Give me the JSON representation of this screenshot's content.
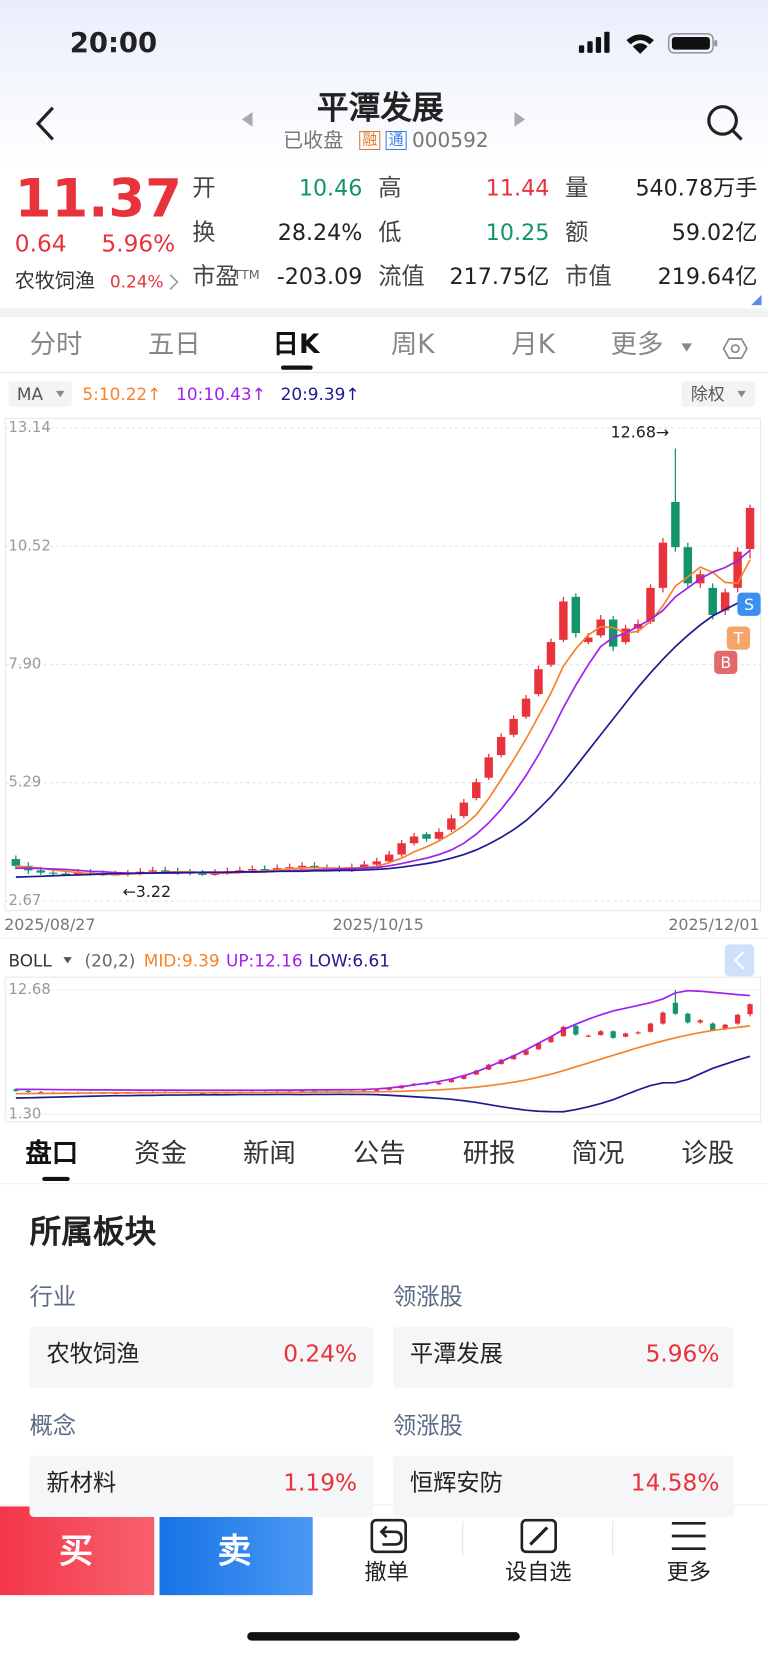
{
  "status_bar": {
    "time": "20:00"
  },
  "header": {
    "title": "平潭发展",
    "status": "已收盘",
    "tag_margin": "融",
    "tag_connect": "通",
    "code": "000592"
  },
  "quote": {
    "price": "11.37",
    "change": "0.64",
    "change_pct": "5.96%",
    "sector": "农牧饲渔",
    "sector_pct": "0.24%",
    "pe_suffix": "TTM",
    "fields": [
      [
        "开",
        "10.46"
      ],
      [
        "高",
        "11.44"
      ],
      [
        "量",
        "540.78万手"
      ],
      [
        "换",
        "28.24%"
      ],
      [
        "低",
        "10.25"
      ],
      [
        "额",
        "59.02亿"
      ],
      [
        "市盈",
        "-203.09"
      ],
      [
        "流值",
        "217.75亿"
      ],
      [
        "市值",
        "219.64亿"
      ]
    ]
  },
  "period_tabs": [
    "分时",
    "五日",
    "日K",
    "周K",
    "月K",
    "更多"
  ],
  "chart_data": [
    {
      "type": "candlestick",
      "indicator": "MA",
      "adjust": "除权",
      "ylim": [
        2.67,
        13.14
      ],
      "yticks": [
        13.14,
        10.52,
        {
          "value": 7.9,
          "label": "7.90"
        },
        5.29,
        2.67
      ],
      "x_labels": [
        "2025/08/27",
        "2025/10/15",
        "2025/12/01"
      ],
      "up_color": "#e8323c",
      "down_color": "#13946b",
      "open": [
        3.6,
        3.45,
        3.35,
        3.3,
        3.28,
        3.25,
        3.3,
        3.27,
        3.24,
        3.26,
        3.28,
        3.32,
        3.35,
        3.33,
        3.3,
        3.28,
        3.25,
        3.3,
        3.33,
        3.35,
        3.38,
        3.36,
        3.4,
        3.42,
        3.45,
        3.4,
        3.38,
        3.36,
        3.42,
        3.48,
        3.55,
        3.7,
        3.95,
        4.15,
        4.05,
        4.25,
        4.55,
        4.95,
        5.4,
        5.9,
        6.35,
        6.75,
        7.25,
        7.9,
        8.45,
        9.4,
        8.4,
        8.55,
        8.9,
        8.4,
        8.7,
        8.85,
        9.6,
        11.5,
        10.5,
        9.7,
        9.6,
        9.1,
        9.6,
        10.46
      ],
      "high": [
        3.68,
        3.53,
        3.43,
        3.38,
        3.36,
        3.38,
        3.38,
        3.35,
        3.34,
        3.36,
        3.4,
        3.43,
        3.43,
        3.41,
        3.38,
        3.36,
        3.38,
        3.41,
        3.43,
        3.46,
        3.46,
        3.48,
        3.5,
        3.53,
        3.53,
        3.48,
        3.46,
        3.5,
        3.56,
        3.63,
        3.78,
        4.02,
        4.18,
        4.2,
        4.28,
        4.58,
        4.93,
        5.38,
        5.93,
        6.38,
        6.78,
        7.23,
        7.88,
        8.48,
        9.4,
        9.48,
        8.6,
        9.0,
        8.98,
        8.78,
        8.9,
        9.68,
        10.7,
        12.68,
        10.6,
        10.0,
        9.7,
        9.58,
        10.5,
        11.44
      ],
      "low": [
        3.37,
        3.27,
        3.25,
        3.24,
        3.23,
        3.23,
        3.24,
        3.23,
        3.23,
        3.22,
        3.24,
        3.27,
        3.27,
        3.25,
        3.24,
        3.23,
        3.23,
        3.25,
        3.28,
        3.3,
        3.3,
        3.31,
        3.34,
        3.37,
        3.35,
        3.33,
        3.31,
        3.31,
        3.37,
        3.43,
        3.5,
        3.65,
        3.9,
        3.98,
        4.0,
        4.2,
        4.5,
        4.9,
        5.35,
        5.85,
        6.3,
        6.7,
        7.2,
        7.85,
        8.4,
        8.5,
        8.35,
        8.5,
        8.2,
        8.35,
        8.6,
        8.8,
        9.5,
        10.4,
        9.6,
        9.6,
        8.9,
        9.0,
        9.5,
        10.25
      ],
      "close": [
        3.45,
        3.35,
        3.3,
        3.28,
        3.25,
        3.3,
        3.27,
        3.24,
        3.26,
        3.28,
        3.32,
        3.35,
        3.33,
        3.3,
        3.28,
        3.25,
        3.3,
        3.33,
        3.35,
        3.38,
        3.36,
        3.4,
        3.42,
        3.45,
        3.4,
        3.38,
        3.36,
        3.42,
        3.48,
        3.55,
        3.7,
        3.95,
        4.1,
        4.05,
        4.2,
        4.5,
        4.85,
        5.3,
        5.85,
        6.3,
        6.7,
        7.15,
        7.8,
        8.4,
        9.3,
        8.6,
        8.5,
        8.9,
        8.3,
        8.7,
        8.8,
        9.6,
        10.6,
        10.5,
        9.7,
        9.9,
        9.0,
        9.5,
        10.4,
        11.37
      ],
      "series": [
        {
          "name": "5:10.22↑",
          "color": "#f5832a",
          "values": [
            3.45,
            3.42,
            3.4,
            3.36,
            3.33,
            3.3,
            3.28,
            3.27,
            3.26,
            3.27,
            3.28,
            3.29,
            3.31,
            3.32,
            3.32,
            3.3,
            3.29,
            3.29,
            3.3,
            3.32,
            3.34,
            3.36,
            3.38,
            3.4,
            3.41,
            3.4,
            3.4,
            3.4,
            3.41,
            3.44,
            3.52,
            3.62,
            3.76,
            3.87,
            4.0,
            4.16,
            4.34,
            4.58,
            4.94,
            5.36,
            5.8,
            6.26,
            6.76,
            7.27,
            7.87,
            8.25,
            8.56,
            8.74,
            8.72,
            8.6,
            8.64,
            8.86,
            9.2,
            9.64,
            9.84,
            10.06,
            9.94,
            9.72,
            9.7,
            10.22
          ]
        },
        {
          "name": "10:10.43↑",
          "color": "#a020f0",
          "values": [
            3.4,
            3.4,
            3.39,
            3.38,
            3.37,
            3.35,
            3.33,
            3.32,
            3.3,
            3.29,
            3.29,
            3.29,
            3.29,
            3.29,
            3.3,
            3.3,
            3.3,
            3.3,
            3.31,
            3.31,
            3.32,
            3.33,
            3.34,
            3.35,
            3.36,
            3.37,
            3.38,
            3.39,
            3.4,
            3.41,
            3.45,
            3.5,
            3.56,
            3.62,
            3.7,
            3.8,
            3.95,
            4.15,
            4.4,
            4.7,
            5.05,
            5.45,
            5.9,
            6.4,
            6.95,
            7.45,
            7.9,
            8.3,
            8.5,
            8.6,
            8.75,
            8.9,
            9.1,
            9.4,
            9.6,
            9.8,
            9.95,
            10.05,
            10.2,
            10.43
          ]
        },
        {
          "name": "20:9.39↑",
          "color": "#1b1b8f",
          "values": [
            3.2,
            3.21,
            3.22,
            3.23,
            3.24,
            3.25,
            3.26,
            3.27,
            3.28,
            3.28,
            3.29,
            3.29,
            3.3,
            3.3,
            3.3,
            3.31,
            3.31,
            3.31,
            3.32,
            3.32,
            3.32,
            3.33,
            3.33,
            3.33,
            3.34,
            3.34,
            3.35,
            3.35,
            3.36,
            3.37,
            3.39,
            3.42,
            3.46,
            3.5,
            3.55,
            3.62,
            3.7,
            3.8,
            3.93,
            4.08,
            4.25,
            4.45,
            4.7,
            4.98,
            5.3,
            5.65,
            6.0,
            6.35,
            6.7,
            7.05,
            7.4,
            7.72,
            8.02,
            8.3,
            8.55,
            8.78,
            8.98,
            9.12,
            9.26,
            9.39
          ]
        }
      ],
      "annotations": [
        "12.68→",
        "←3.22"
      ],
      "trade_markers": [
        "B",
        "T",
        "S"
      ]
    },
    {
      "type": "boll",
      "indicator": "BOLL",
      "params": "(20,2)",
      "ylim": [
        1.3,
        12.68
      ],
      "yticks": [
        12.68,
        {
          "value": 1.3,
          "label": "1.30"
        }
      ],
      "series": [
        {
          "name": "MID:9.39",
          "color": "#f5832a",
          "values": [
            3.2,
            3.21,
            3.22,
            3.23,
            3.24,
            3.25,
            3.26,
            3.27,
            3.28,
            3.28,
            3.29,
            3.29,
            3.3,
            3.3,
            3.3,
            3.31,
            3.31,
            3.31,
            3.32,
            3.32,
            3.32,
            3.33,
            3.33,
            3.33,
            3.34,
            3.34,
            3.35,
            3.35,
            3.36,
            3.37,
            3.39,
            3.42,
            3.46,
            3.5,
            3.55,
            3.62,
            3.7,
            3.8,
            3.93,
            4.08,
            4.25,
            4.45,
            4.7,
            4.98,
            5.3,
            5.65,
            6.0,
            6.35,
            6.7,
            7.05,
            7.4,
            7.72,
            8.02,
            8.3,
            8.55,
            8.78,
            8.98,
            9.12,
            9.26,
            9.39
          ]
        },
        {
          "name": "UP:12.16",
          "color": "#a020f0",
          "values": [
            3.6,
            3.6,
            3.59,
            3.58,
            3.57,
            3.56,
            3.55,
            3.55,
            3.54,
            3.54,
            3.53,
            3.53,
            3.53,
            3.53,
            3.52,
            3.52,
            3.52,
            3.52,
            3.52,
            3.52,
            3.52,
            3.53,
            3.53,
            3.54,
            3.55,
            3.55,
            3.56,
            3.57,
            3.59,
            3.63,
            3.72,
            3.85,
            4.0,
            4.15,
            4.32,
            4.55,
            4.85,
            5.2,
            5.65,
            6.15,
            6.65,
            7.2,
            7.8,
            8.4,
            9.05,
            9.55,
            10.0,
            10.4,
            10.75,
            11.0,
            11.25,
            11.5,
            11.85,
            12.4,
            12.6,
            12.55,
            12.45,
            12.35,
            12.25,
            12.16
          ]
        },
        {
          "name": "LOW:6.61",
          "color": "#1b1b8f",
          "values": [
            2.8,
            2.82,
            2.85,
            2.88,
            2.91,
            2.94,
            2.97,
            3.0,
            3.02,
            3.02,
            3.05,
            3.05,
            3.07,
            3.07,
            3.08,
            3.1,
            3.1,
            3.1,
            3.12,
            3.12,
            3.12,
            3.13,
            3.13,
            3.12,
            3.13,
            3.13,
            3.14,
            3.13,
            3.13,
            3.11,
            3.06,
            2.99,
            2.92,
            2.85,
            2.78,
            2.69,
            2.55,
            2.4,
            2.21,
            2.01,
            1.85,
            1.7,
            1.6,
            1.56,
            1.55,
            1.75,
            2.0,
            2.3,
            2.65,
            3.1,
            3.55,
            3.94,
            4.19,
            4.2,
            4.5,
            5.01,
            5.51,
            5.89,
            6.27,
            6.61
          ]
        }
      ]
    }
  ],
  "info_tabs": [
    "盘口",
    "资金",
    "新闻",
    "公告",
    "研报",
    "简况",
    "诊股"
  ],
  "sector_panel": {
    "title": "所属板块",
    "groups": [
      {
        "label": "行业",
        "name": "农牧饲渔",
        "pct": "0.24%",
        "leader_label": "领涨股",
        "leader": "平潭发展",
        "leader_pct": "5.96%"
      },
      {
        "label": "概念",
        "name": "新材料",
        "pct": "1.19%",
        "leader_label": "领涨股",
        "leader": "恒辉安防",
        "leader_pct": "14.58%"
      }
    ]
  },
  "action_bar": {
    "buy": "买",
    "sell": "卖",
    "cancel": "撤单",
    "watchlist": "设自选",
    "more": "更多"
  }
}
